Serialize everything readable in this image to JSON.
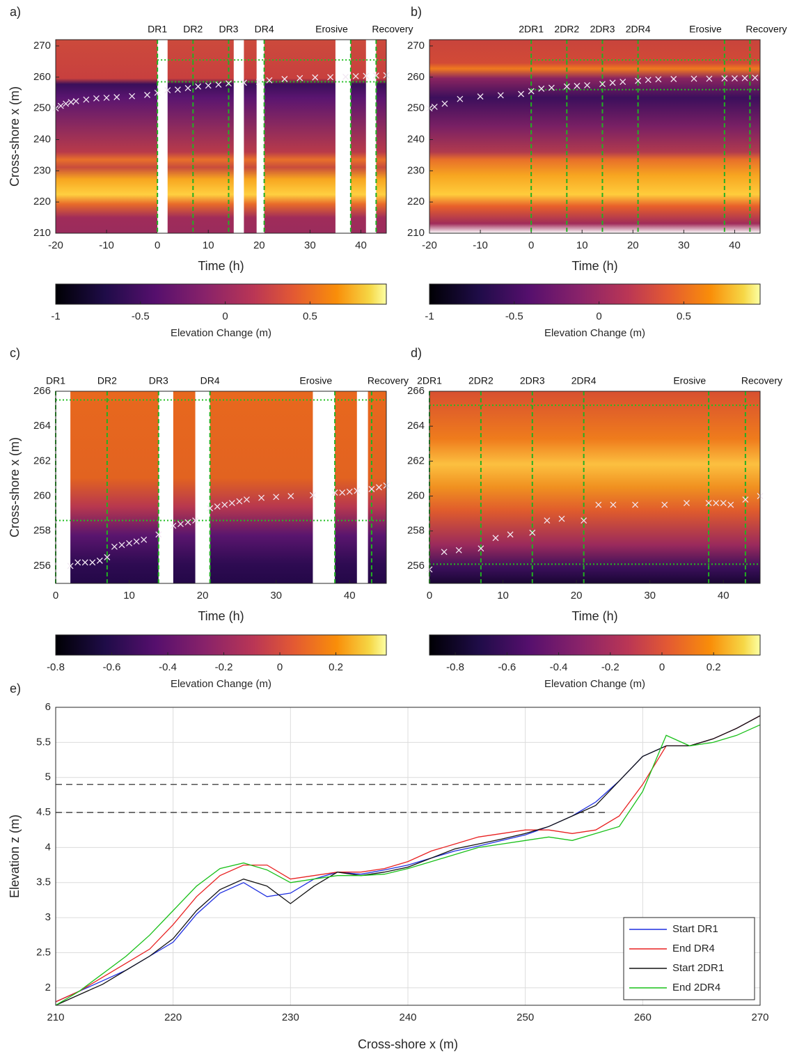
{
  "chart_data": [
    {
      "type": "heatmap",
      "title": "a)",
      "xlabel": "Time (h)",
      "ylabel": "Cross-shore x (m)",
      "xlim": [
        -20,
        45
      ],
      "ylim": [
        210,
        272
      ],
      "xticks": [
        -20,
        -10,
        0,
        10,
        20,
        30,
        40
      ],
      "yticks": [
        210,
        220,
        230,
        240,
        250,
        260,
        270
      ],
      "events": [
        "DR1",
        "DR2",
        "DR3",
        "DR4",
        "Erosive",
        "Recovery"
      ],
      "event_x": [
        0,
        7,
        14,
        21,
        38,
        43
      ],
      "ref_y": [
        258.5,
        265.5
      ],
      "gaps": [
        [
          0,
          2
        ],
        [
          15,
          17
        ],
        [
          19.5,
          21
        ],
        [
          35,
          38
        ],
        [
          41,
          43
        ]
      ],
      "x": [
        -20,
        -19,
        -18,
        -17,
        -16,
        -14,
        -12,
        -10,
        -8,
        -5,
        -2,
        0,
        2,
        4,
        6,
        8,
        10,
        12,
        14,
        17,
        20,
        22,
        25,
        28,
        31,
        34,
        37,
        39,
        41,
        43,
        45
      ],
      "y": [
        250,
        250.8,
        251.5,
        252,
        252.3,
        252.8,
        253.2,
        253.4,
        253.6,
        253.9,
        254.3,
        255,
        255.8,
        256,
        256.5,
        257,
        257.3,
        257.6,
        258,
        258.2,
        258.5,
        259,
        259.4,
        259.7,
        259.9,
        260,
        260.1,
        260.3,
        260.4,
        260.5,
        260.6
      ],
      "colorbar": {
        "label": "Elevation Change (m)",
        "lim": [
          -1,
          0.95
        ],
        "ticks": [
          -1,
          -0.5,
          0,
          0.5
        ]
      }
    },
    {
      "type": "heatmap",
      "title": "b)",
      "xlabel": "Time (h)",
      "xlim": [
        -20,
        45
      ],
      "ylim": [
        210,
        272
      ],
      "xticks": [
        -20,
        -10,
        0,
        10,
        20,
        30,
        40
      ],
      "yticks": [
        210,
        220,
        230,
        240,
        250,
        260,
        270
      ],
      "events": [
        "2DR1",
        "2DR2",
        "2DR3",
        "2DR4",
        "Erosive",
        "Recovery"
      ],
      "event_x": [
        0,
        7,
        14,
        21,
        38,
        43
      ],
      "ref_y": [
        256,
        265.5
      ],
      "gaps": [],
      "x": [
        -20,
        -19,
        -17,
        -14,
        -10,
        -6,
        -2,
        0,
        2,
        4,
        7,
        9,
        11,
        14,
        16,
        18,
        21,
        23,
        25,
        28,
        32,
        35,
        38,
        40,
        42,
        44
      ],
      "y": [
        250,
        250.5,
        251.5,
        253,
        253.8,
        254.2,
        254.6,
        255.5,
        256.3,
        256.6,
        257,
        257.2,
        257.4,
        257.8,
        258.2,
        258.5,
        258.8,
        259.1,
        259.3,
        259.4,
        259.5,
        259.5,
        259.6,
        259.6,
        259.7,
        259.8
      ],
      "colorbar": {
        "label": "Elevation Change (m)",
        "lim": [
          -1,
          0.95
        ],
        "ticks": [
          -1,
          -0.5,
          0,
          0.5
        ]
      }
    },
    {
      "type": "heatmap",
      "title": "c)",
      "xlabel": "Time (h)",
      "ylabel": "Cross-shore x (m)",
      "xlim": [
        0,
        45
      ],
      "ylim": [
        255,
        266
      ],
      "xticks": [
        0,
        10,
        20,
        30,
        40
      ],
      "yticks": [
        256,
        258,
        260,
        262,
        264,
        266
      ],
      "events": [
        "DR1",
        "DR2",
        "DR3",
        "DR4",
        "Erosive",
        "Recovery"
      ],
      "event_x": [
        0,
        7,
        14,
        21,
        38,
        43
      ],
      "ref_y": [
        258.6,
        265.5
      ],
      "gaps": [
        [
          0,
          2
        ],
        [
          14,
          16
        ],
        [
          19,
          21
        ],
        [
          35,
          38
        ],
        [
          41,
          42.5
        ]
      ],
      "x": [
        2,
        3,
        4,
        5,
        6,
        7,
        8,
        9,
        10,
        11,
        12,
        14,
        16,
        17,
        18,
        19,
        21,
        22,
        23,
        24,
        25,
        26,
        28,
        30,
        32,
        35,
        38,
        39,
        40,
        41,
        43,
        44,
        45
      ],
      "y": [
        256,
        256.2,
        256.2,
        256.2,
        256.3,
        256.5,
        257.1,
        257.2,
        257.3,
        257.4,
        257.5,
        257.8,
        258.3,
        258.4,
        258.5,
        258.6,
        259.3,
        259.4,
        259.5,
        259.6,
        259.7,
        259.8,
        259.9,
        259.95,
        260,
        260.05,
        260.2,
        260.2,
        260.25,
        260.3,
        260.4,
        260.5,
        260.6
      ],
      "colorbar": {
        "label": "Elevation Change (m)",
        "lim": [
          -0.8,
          0.38
        ],
        "ticks": [
          -0.8,
          -0.6,
          -0.4,
          -0.2,
          0,
          0.2
        ]
      }
    },
    {
      "type": "heatmap",
      "title": "d)",
      "xlabel": "Time (h)",
      "xlim": [
        0,
        45
      ],
      "ylim": [
        255,
        266
      ],
      "xticks": [
        0,
        10,
        20,
        30,
        40
      ],
      "yticks": [
        256,
        258,
        260,
        262,
        264,
        266
      ],
      "events": [
        "2DR1",
        "2DR2",
        "2DR3",
        "2DR4",
        "Erosive",
        "Recovery"
      ],
      "event_x": [
        0,
        7,
        14,
        21,
        38,
        43
      ],
      "ref_y": [
        256.1,
        265.2
      ],
      "gaps": [],
      "x": [
        0,
        2,
        4,
        7,
        9,
        11,
        14,
        16,
        18,
        21,
        23,
        25,
        28,
        32,
        35,
        38,
        39,
        40,
        41,
        43,
        45
      ],
      "y": [
        255.8,
        256.8,
        256.9,
        257,
        257.6,
        257.8,
        257.9,
        258.6,
        258.7,
        258.6,
        259.5,
        259.5,
        259.5,
        259.5,
        259.6,
        259.6,
        259.6,
        259.6,
        259.5,
        259.8,
        260
      ],
      "colorbar": {
        "label": "Elevation Change (m)",
        "lim": [
          -0.9,
          0.38
        ],
        "ticks": [
          -0.8,
          -0.6,
          -0.4,
          -0.2,
          0,
          0.2
        ]
      }
    },
    {
      "type": "line",
      "title": "e)",
      "xlabel": "Cross-shore x (m)",
      "ylabel": "Elevation z (m)",
      "xlim": [
        210,
        270
      ],
      "ylim": [
        1.75,
        6
      ],
      "xticks": [
        210,
        220,
        230,
        240,
        250,
        260,
        270
      ],
      "yticks": [
        2,
        2.5,
        3,
        3.5,
        4,
        4.5,
        5,
        5.5,
        6
      ],
      "grid": true,
      "legend": "southeast",
      "ref_y": [
        4.5,
        4.9
      ],
      "x": [
        210,
        212,
        214,
        216,
        218,
        220,
        222,
        224,
        226,
        228,
        230,
        232,
        234,
        236,
        238,
        240,
        242,
        244,
        246,
        248,
        250,
        252,
        254,
        256,
        258,
        260,
        262,
        264,
        266,
        268,
        270
      ],
      "series": [
        {
          "name": "Start DR1",
          "color": "#1f2fe0",
          "values": [
            1.8,
            1.95,
            2.1,
            2.25,
            2.45,
            2.65,
            3.05,
            3.35,
            3.5,
            3.3,
            3.35,
            3.55,
            3.65,
            3.62,
            3.68,
            3.75,
            3.85,
            3.95,
            4.02,
            4.1,
            4.18,
            4.3,
            4.45,
            4.65,
            4.95,
            5.3,
            5.45,
            5.45,
            5.55,
            5.7,
            5.88
          ]
        },
        {
          "name": "End DR4",
          "color": "#e82020",
          "values": [
            1.8,
            1.95,
            2.15,
            2.35,
            2.55,
            2.9,
            3.3,
            3.6,
            3.75,
            3.75,
            3.55,
            3.6,
            3.65,
            3.65,
            3.7,
            3.8,
            3.95,
            4.05,
            4.15,
            4.2,
            4.25,
            4.25,
            4.2,
            4.25,
            4.45,
            4.9,
            5.45,
            5.45,
            5.55,
            5.7,
            5.88
          ]
        },
        {
          "name": "Start 2DR1",
          "color": "#111111",
          "values": [
            1.75,
            1.9,
            2.05,
            2.25,
            2.45,
            2.7,
            3.1,
            3.4,
            3.55,
            3.45,
            3.2,
            3.45,
            3.65,
            3.6,
            3.65,
            3.72,
            3.85,
            3.98,
            4.05,
            4.12,
            4.2,
            4.3,
            4.45,
            4.6,
            4.95,
            5.3,
            5.45,
            5.45,
            5.55,
            5.7,
            5.88
          ]
        },
        {
          "name": "End 2DR4",
          "color": "#18c018",
          "values": [
            1.75,
            1.95,
            2.2,
            2.45,
            2.75,
            3.1,
            3.45,
            3.7,
            3.78,
            3.68,
            3.5,
            3.55,
            3.6,
            3.6,
            3.62,
            3.7,
            3.8,
            3.9,
            4,
            4.05,
            4.1,
            4.15,
            4.1,
            4.2,
            4.3,
            4.8,
            5.6,
            5.45,
            5.5,
            5.6,
            5.75
          ]
        }
      ]
    }
  ]
}
